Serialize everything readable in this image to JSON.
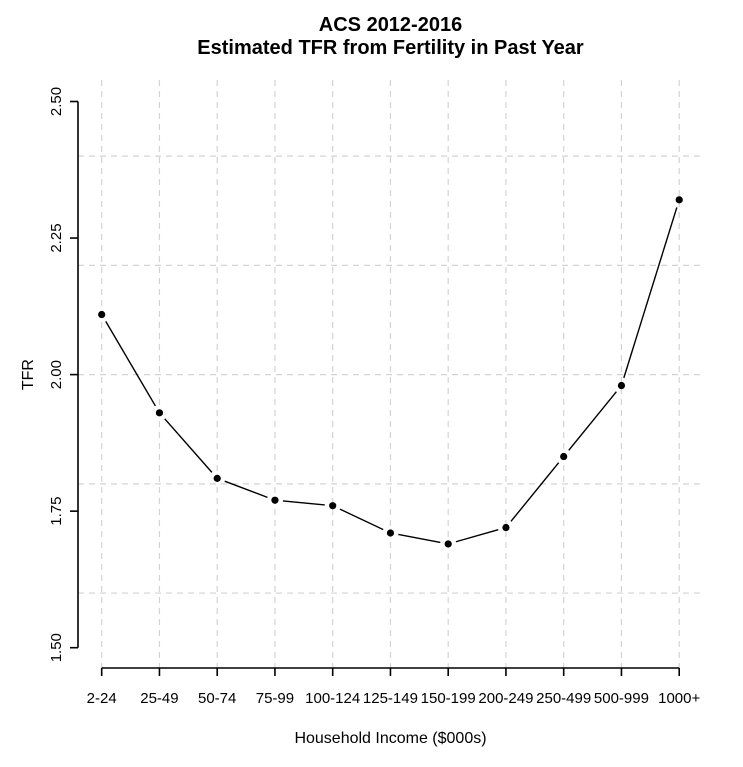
{
  "figure": {
    "background_color": "#ffffff",
    "text_color": "#000000"
  },
  "chart_data": {
    "type": "line",
    "title_lines": [
      "ACS 2012-2016",
      "Estimated TFR from Fertility in Past Year"
    ],
    "title": "ACS 2012-2016 — Estimated TFR from Fertility in Past Year",
    "xlabel": "Household Income ($000s)",
    "ylabel": "TFR",
    "categories": [
      "2-24",
      "25-49",
      "50-74",
      "75-99",
      "100-124",
      "125-149",
      "150-199",
      "200-249",
      "250-499",
      "500-999",
      "1000+"
    ],
    "values": [
      2.11,
      1.93,
      1.81,
      1.77,
      1.76,
      1.71,
      1.69,
      1.72,
      1.85,
      1.98,
      2.32
    ],
    "series_name": "Estimated TFR",
    "yticks": [
      1.5,
      1.75,
      2.0,
      2.25,
      2.5
    ],
    "ytick_labels": [
      "1.50",
      "1.75",
      "2.00",
      "2.25",
      "2.50"
    ],
    "ylim": [
      1.46,
      2.54
    ],
    "grid_y": [
      1.6,
      1.8,
      2.0,
      2.2,
      2.4
    ],
    "grid_style": "dashed",
    "grid_color": "#d3d3d3",
    "line_color": "#000000",
    "marker": "filled-circle",
    "marker_color": "#000000",
    "plot_style": "points connected by segments with gaps (R type='b')",
    "legend": "none"
  }
}
